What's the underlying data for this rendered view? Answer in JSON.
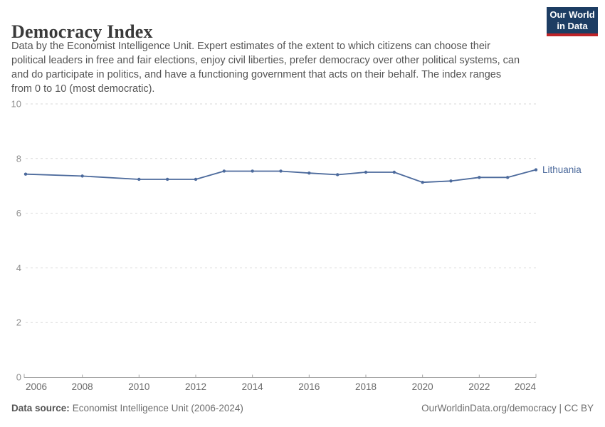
{
  "header": {
    "title": "Democracy Index",
    "subtitle_lines": [
      "Data by the Economist Intelligence Unit. Expert estimates of the extent to which citizens can choose their",
      "political leaders in free and fair elections, enjoy civil liberties, prefer democracy over other political systems, can",
      "and do participate in politics, and have a functioning government that acts on their behalf. The index ranges",
      "from 0 to 10 (most democratic)."
    ],
    "logo": {
      "line1": "Our World",
      "line2": "in Data",
      "bg_color": "#1D3D63",
      "accent_color": "#BE2328",
      "text_color": "#FFFFFF"
    }
  },
  "chart_data": {
    "type": "line",
    "title": "Democracy Index",
    "x": [
      2006,
      2008,
      2010,
      2011,
      2012,
      2013,
      2014,
      2015,
      2016,
      2017,
      2018,
      2019,
      2020,
      2021,
      2022,
      2023,
      2024
    ],
    "series": [
      {
        "name": "Lithuania",
        "color": "#4C6A9C",
        "values": [
          7.43,
          7.36,
          7.24,
          7.24,
          7.24,
          7.54,
          7.54,
          7.54,
          7.47,
          7.41,
          7.5,
          7.5,
          7.13,
          7.18,
          7.31,
          7.31,
          7.59
        ]
      }
    ],
    "xlim": [
      2006,
      2024
    ],
    "ylim": [
      0,
      10
    ],
    "x_ticks": [
      2006,
      2008,
      2010,
      2012,
      2014,
      2016,
      2018,
      2020,
      2022,
      2024
    ],
    "y_ticks": [
      0,
      2,
      4,
      6,
      8,
      10
    ],
    "grid": "horizontal-dashed",
    "legend": "end-of-line-label",
    "axis_color": "#a3a3a3",
    "grid_color": "#dadada",
    "y_tick_label_color": "#8f8f8f",
    "x_tick_label_color": "#696969"
  },
  "footer": {
    "source_label": "Data source:",
    "source_value": "Economist Intelligence Unit (2006-2024)",
    "rights": "OurWorldinData.org/democracy | CC BY"
  }
}
